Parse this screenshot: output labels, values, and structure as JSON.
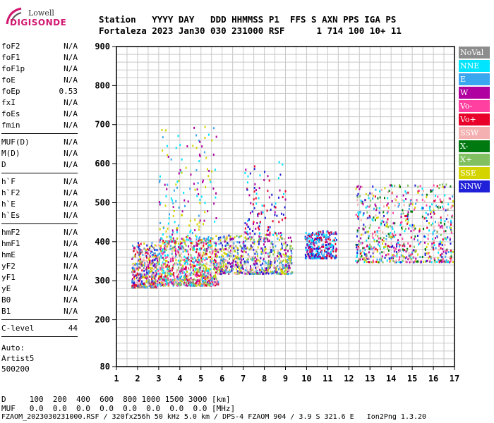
{
  "logo": {
    "line1": "Lowell",
    "line2": "DIGISONDE"
  },
  "header": {
    "row1": "Station   YYYY DAY   DDD HHMMSS P1  FFS S AXN PPS IGA PS",
    "row2": "Fortaleza 2023 Jan30 030 231000 RSF      1 714 100 10+ 11"
  },
  "params": {
    "group1": [
      {
        "k": "foF2",
        "v": "N/A"
      },
      {
        "k": "foF1",
        "v": "N/A"
      },
      {
        "k": "foF1p",
        "v": "N/A"
      },
      {
        "k": "foE",
        "v": "N/A"
      },
      {
        "k": "foEp",
        "v": "0.53"
      },
      {
        "k": "fxI",
        "v": "N/A"
      },
      {
        "k": "foEs",
        "v": "N/A"
      },
      {
        "k": "fmin",
        "v": "N/A"
      }
    ],
    "group2": [
      {
        "k": "MUF(D)",
        "v": "N/A"
      },
      {
        "k": "M(D)",
        "v": "N/A"
      },
      {
        "k": "D",
        "v": "N/A"
      }
    ],
    "group3": [
      {
        "k": "h`F",
        "v": "N/A"
      },
      {
        "k": "h`F2",
        "v": "N/A"
      },
      {
        "k": "h`E",
        "v": "N/A"
      },
      {
        "k": "h`Es",
        "v": "N/A"
      }
    ],
    "group4": [
      {
        "k": "hmF2",
        "v": "N/A"
      },
      {
        "k": "hmF1",
        "v": "N/A"
      },
      {
        "k": "hmE",
        "v": "N/A"
      },
      {
        "k": "yF2",
        "v": "N/A"
      },
      {
        "k": "yF1",
        "v": "N/A"
      },
      {
        "k": "yE",
        "v": "N/A"
      },
      {
        "k": "B0",
        "v": "N/A"
      },
      {
        "k": "B1",
        "v": "N/A"
      }
    ],
    "clevel": {
      "k": "C-level",
      "v": "44"
    }
  },
  "auto": {
    "l1": "Auto:",
    "l2": "Artist5",
    "l3": "500200"
  },
  "legend": [
    {
      "label": "NoVal",
      "color": "#8c8c8c"
    },
    {
      "label": "NNE",
      "color": "#00e5ff"
    },
    {
      "label": "E",
      "color": "#3aa6f0"
    },
    {
      "label": "W",
      "color": "#b000a0"
    },
    {
      "label": "Vo-",
      "color": "#ff40a0"
    },
    {
      "label": "Vo+",
      "color": "#e8002a"
    },
    {
      "label": "SSW",
      "color": "#f4b0b0"
    },
    {
      "label": "X-",
      "color": "#007a10"
    },
    {
      "label": "X+",
      "color": "#80c060"
    },
    {
      "label": "SSE",
      "color": "#d4d400"
    },
    {
      "label": "NNW",
      "color": "#2020d8"
    }
  ],
  "footer": {
    "d_row": "D     100  200  400  600  800 1000 1500 3000 [km]",
    "muf_row": "MUF   0.0  0.0  0.0  0.0  0.0  0.0  0.0  0.0 [MHz]",
    "info": "FZAOM_2023030231000.RSF / 320fx256h 50 kHz 5.0 km / DPS-4 FZAOM 904 / 3.9 S 321.6 E   Ion2Png 1.3.20"
  },
  "chart_data": {
    "type": "scatter",
    "xlim": [
      1,
      17
    ],
    "ylim": [
      80,
      900
    ],
    "x_ticks": [
      1,
      2,
      3,
      4,
      5,
      6,
      7,
      8,
      9,
      10,
      11,
      12,
      13,
      14,
      15,
      16,
      17
    ],
    "y_ticks": [
      80,
      200,
      300,
      400,
      500,
      600,
      700,
      800,
      900
    ],
    "grid": true,
    "legend_position": "right",
    "clusters": [
      {
        "x": [
          1.7,
          2.9
        ],
        "y": [
          285,
          400
        ],
        "colors": [
          "#8c8c8c",
          "#e8002a",
          "#b000a0",
          "#3aa6f0",
          "#f4b0b0",
          "#2020d8",
          "#d4d400"
        ]
      },
      {
        "x": [
          2.9,
          5.8
        ],
        "y": [
          290,
          410
        ],
        "colors": [
          "#d4d400",
          "#3aa6f0",
          "#00e5ff",
          "#ff40a0",
          "#e8002a",
          "#b000a0",
          "#f4b0b0",
          "#80c060"
        ]
      },
      {
        "x": [
          3.0,
          5.7
        ],
        "y": [
          410,
          700
        ],
        "colors": [
          "#d4d400",
          "#3aa6f0",
          "#00e5ff",
          "#b000a0"
        ]
      },
      {
        "x": [
          5.8,
          9.3
        ],
        "y": [
          320,
          420
        ],
        "colors": [
          "#d4d400",
          "#3aa6f0",
          "#f4b0b0",
          "#2020d8",
          "#b000a0",
          "#80c060"
        ]
      },
      {
        "x": [
          7.0,
          9.0
        ],
        "y": [
          420,
          610
        ],
        "colors": [
          "#b000a0",
          "#2020d8",
          "#00e5ff",
          "#e8002a"
        ]
      },
      {
        "x": [
          9.9,
          11.4
        ],
        "y": [
          360,
          430
        ],
        "colors": [
          "#b000a0",
          "#e8002a",
          "#2020d8",
          "#00e5ff",
          "#3aa6f0"
        ]
      },
      {
        "x": [
          12.3,
          16.9
        ],
        "y": [
          350,
          550
        ],
        "colors": [
          "#3aa6f0",
          "#2020d8",
          "#b000a0",
          "#e8002a",
          "#ff40a0",
          "#007a10",
          "#80c060",
          "#00e5ff",
          "#d4d400",
          "#f4b0b0"
        ]
      }
    ]
  }
}
